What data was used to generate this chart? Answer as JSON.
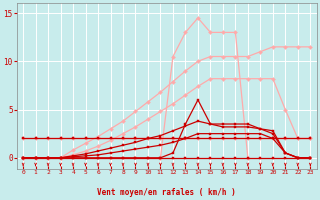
{
  "background_color": "#c8ecec",
  "grid_color": "#ffffff",
  "xlabel": "Vent moyen/en rafales ( km/h )",
  "xlabel_color": "#cc0000",
  "tick_color": "#cc0000",
  "arrow_color": "#cc0000",
  "xlim": [
    -0.5,
    23.5
  ],
  "ylim": [
    -1.2,
    16
  ],
  "yticks": [
    0,
    5,
    10,
    15
  ],
  "xticks": [
    0,
    1,
    2,
    3,
    4,
    5,
    6,
    7,
    8,
    9,
    10,
    11,
    12,
    13,
    14,
    15,
    16,
    17,
    18,
    19,
    20,
    21,
    22,
    23
  ],
  "lines": [
    {
      "x": [
        0,
        1,
        2,
        3,
        4,
        5,
        6,
        7,
        8,
        9,
        10,
        11,
        12,
        13,
        14,
        15,
        16,
        17,
        18,
        19,
        20,
        21,
        22,
        23
      ],
      "y": [
        2,
        2,
        2,
        2,
        2,
        2,
        2,
        2,
        2,
        2,
        2,
        2,
        2,
        2,
        2,
        2,
        2,
        2,
        2,
        2,
        2,
        2,
        2,
        2
      ],
      "color": "#ffaaaa",
      "lw": 0.9,
      "marker": "D",
      "ms": 2.0
    },
    {
      "x": [
        0,
        1,
        2,
        3,
        4,
        5,
        6,
        7,
        8,
        9,
        10,
        11,
        12,
        13,
        14,
        15,
        16,
        17,
        18,
        19,
        20,
        21,
        22,
        23
      ],
      "y": [
        0,
        0,
        0,
        0,
        0.3,
        0.7,
        1.2,
        1.8,
        2.5,
        3.2,
        4.0,
        4.8,
        5.6,
        6.5,
        7.4,
        8.2,
        8.2,
        8.2,
        8.2,
        8.2,
        8.2,
        5.0,
        2.0,
        2.0
      ],
      "color": "#ffaaaa",
      "lw": 0.9,
      "marker": "D",
      "ms": 2.0
    },
    {
      "x": [
        0,
        1,
        2,
        3,
        4,
        5,
        6,
        7,
        8,
        9,
        10,
        11,
        12,
        13,
        14,
        15,
        16,
        17,
        18,
        19,
        20,
        21,
        22,
        23
      ],
      "y": [
        0,
        0,
        0,
        0,
        0.8,
        1.5,
        2.2,
        3.0,
        3.8,
        4.8,
        5.8,
        6.8,
        7.9,
        9.0,
        10.0,
        10.5,
        10.5,
        10.5,
        10.5,
        11.0,
        11.5,
        11.5,
        11.5,
        11.5
      ],
      "color": "#ffaaaa",
      "lw": 0.9,
      "marker": "D",
      "ms": 2.0
    },
    {
      "x": [
        11,
        12,
        13,
        14,
        15,
        16,
        17,
        18
      ],
      "y": [
        0,
        10.5,
        13.0,
        14.5,
        13.0,
        13.0,
        13.0,
        0
      ],
      "color": "#ffaaaa",
      "lw": 0.9,
      "marker": "D",
      "ms": 2.0
    },
    {
      "x": [
        0,
        1,
        2,
        3,
        4,
        5,
        6,
        7,
        8,
        9,
        10,
        11,
        12,
        13,
        14,
        15,
        16,
        17,
        18,
        19,
        20,
        21,
        22,
        23
      ],
      "y": [
        0,
        0,
        0,
        0,
        0,
        0,
        0,
        0,
        0,
        0,
        0,
        0,
        0,
        0,
        0,
        0,
        0,
        0,
        0,
        0,
        0,
        0,
        0,
        0
      ],
      "color": "#cc0000",
      "lw": 0.9,
      "marker": "s",
      "ms": 2.0
    },
    {
      "x": [
        0,
        1,
        2,
        3,
        4,
        5,
        6,
        7,
        8,
        9,
        10,
        11,
        12,
        13,
        14,
        15,
        16,
        17,
        18,
        19,
        20,
        21,
        22,
        23
      ],
      "y": [
        0,
        0,
        0,
        0,
        0.1,
        0.2,
        0.3,
        0.5,
        0.7,
        0.9,
        1.1,
        1.3,
        1.6,
        2.0,
        2.5,
        2.5,
        2.5,
        2.5,
        2.5,
        2.5,
        2.0,
        0.5,
        0,
        0
      ],
      "color": "#cc0000",
      "lw": 0.9,
      "marker": "s",
      "ms": 2.0
    },
    {
      "x": [
        0,
        1,
        2,
        3,
        4,
        5,
        6,
        7,
        8,
        9,
        10,
        11,
        12,
        13,
        14,
        15,
        16,
        17,
        18,
        19,
        20,
        21,
        22,
        23
      ],
      "y": [
        0,
        0,
        0,
        0,
        0.2,
        0.4,
        0.7,
        1.0,
        1.3,
        1.6,
        2.0,
        2.3,
        2.8,
        3.3,
        3.8,
        3.5,
        3.5,
        3.5,
        3.5,
        3.0,
        2.5,
        0.5,
        0,
        0
      ],
      "color": "#cc0000",
      "lw": 0.9,
      "marker": "s",
      "ms": 2.0
    },
    {
      "x": [
        0,
        1,
        2,
        3,
        4,
        5,
        6,
        7,
        8,
        9,
        10,
        11,
        12,
        13,
        14,
        15,
        16,
        17,
        18,
        19,
        20,
        21,
        22,
        23
      ],
      "y": [
        0,
        0,
        0,
        0,
        0,
        0,
        0,
        0,
        0,
        0,
        0,
        0,
        0.5,
        3.5,
        6.0,
        3.5,
        3.2,
        3.2,
        3.2,
        3.0,
        2.8,
        0.5,
        0,
        0
      ],
      "color": "#cc0000",
      "lw": 0.9,
      "marker": "s",
      "ms": 2.0
    },
    {
      "x": [
        0,
        1,
        2,
        3,
        4,
        5,
        6,
        7,
        8,
        9,
        10,
        11,
        12,
        13,
        14,
        15,
        16,
        17,
        18,
        19,
        20,
        21,
        22,
        23
      ],
      "y": [
        2,
        2,
        2,
        2,
        2,
        2,
        2,
        2,
        2,
        2,
        2,
        2,
        2,
        2,
        2,
        2,
        2,
        2,
        2,
        2,
        2,
        2,
        2,
        2
      ],
      "color": "#cc0000",
      "lw": 0.9,
      "marker": "s",
      "ms": 2.0
    }
  ],
  "arrows_x": [
    0,
    1,
    2,
    3,
    4,
    5,
    6,
    7,
    8,
    9,
    10,
    11,
    12,
    13,
    14,
    15,
    16,
    17,
    18,
    19,
    20,
    21,
    22,
    23
  ]
}
